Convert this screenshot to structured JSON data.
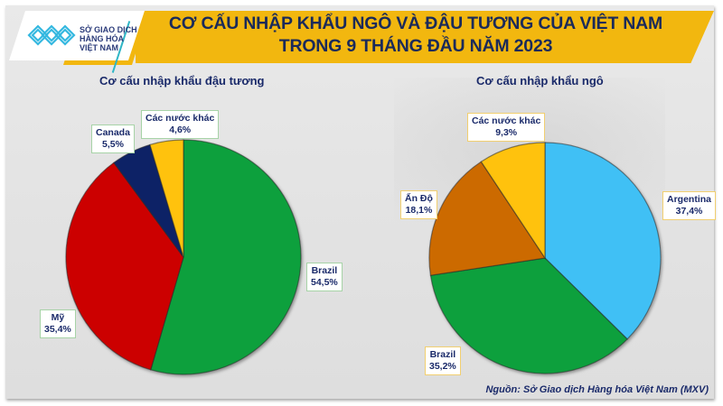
{
  "logo": {
    "line1": "SỞ GIAO DỊCH",
    "line2": "HÀNG HÓA",
    "line3": "VIỆT NAM"
  },
  "header": {
    "title_line1": "CƠ CẤU NHẬP KHẨU NGÔ VÀ ĐẬU TƯƠNG CỦA VIỆT NAM",
    "title_line2": "TRONG 9 THÁNG ĐẦU NĂM 2023"
  },
  "colors": {
    "banner": "#f2b70f",
    "title_text": "#1a2a5a",
    "green": "#0ba03c",
    "red": "#cc0000",
    "navy": "#0f2466",
    "yellow": "#ffc20e",
    "light_blue": "#3fc0f5",
    "orange": "#cc6a00"
  },
  "chart_data": [
    {
      "type": "pie",
      "title": "Cơ cấu nhập khẩu đậu tương",
      "categories": [
        "Brazil",
        "Mỹ",
        "Canada",
        "Các nước khác"
      ],
      "values": [
        54.5,
        35.4,
        5.5,
        4.6
      ],
      "labels": [
        "54,5%",
        "35,4%",
        "5,5%",
        "4,6%"
      ],
      "colors": [
        "#0ba03c",
        "#cc0000",
        "#0f2466",
        "#ffc20e"
      ],
      "unit": "%",
      "start_angle": "12 o'clock, clockwise"
    },
    {
      "type": "pie",
      "title": "Cơ cấu nhập khẩu ngô",
      "categories": [
        "Argentina",
        "Brazil",
        "Ấn Độ",
        "Các nước khác"
      ],
      "values": [
        37.4,
        35.2,
        18.1,
        9.3
      ],
      "labels": [
        "37,4%",
        "35,2%",
        "18,1%",
        "9,3%"
      ],
      "colors": [
        "#3fc0f5",
        "#0ba03c",
        "#cc6a00",
        "#ffc20e"
      ],
      "unit": "%",
      "start_angle": "12 o'clock, clockwise"
    }
  ],
  "footer": {
    "source": "Nguồn: Sở Giao dịch Hàng hóa Việt Nam (MXV)"
  }
}
